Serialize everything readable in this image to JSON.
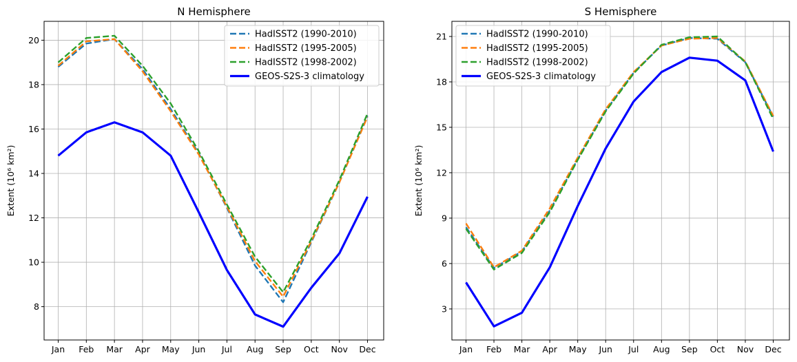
{
  "chart_data": [
    {
      "type": "line",
      "title": "N Hemisphere",
      "xlabel": "",
      "ylabel": "Extent (10⁶ km²)",
      "categories": [
        "Jan",
        "Feb",
        "Mar",
        "Apr",
        "May",
        "Jun",
        "Jul",
        "Aug",
        "Sep",
        "Oct",
        "Nov",
        "Dec"
      ],
      "ylim": [
        6.5,
        20.85
      ],
      "yticks": [
        8,
        10,
        12,
        14,
        16,
        18,
        20
      ],
      "grid": true,
      "legend_position": "top-right",
      "series": [
        {
          "name": "HadISST2 (1990-2010)",
          "color": "#1f77b4",
          "style": "dashed",
          "values": [
            18.8,
            19.85,
            20.05,
            18.7,
            16.9,
            14.9,
            12.45,
            9.85,
            8.2,
            10.9,
            13.6,
            16.6
          ]
        },
        {
          "name": "HadISST2 (1995-2005)",
          "color": "#ff7f0e",
          "style": "dashed",
          "values": [
            18.85,
            19.95,
            20.05,
            18.6,
            16.8,
            14.85,
            12.5,
            10.05,
            8.45,
            10.95,
            13.6,
            16.55
          ]
        },
        {
          "name": "HadISST2 (1998-2002)",
          "color": "#2ca02c",
          "style": "dashed",
          "values": [
            19.0,
            20.1,
            20.2,
            18.85,
            17.15,
            15.0,
            12.6,
            10.25,
            8.65,
            11.05,
            13.7,
            16.7
          ]
        },
        {
          "name": "GEOS-S2S-3 climatology",
          "color": "#0000ff",
          "style": "solid",
          "values": [
            14.8,
            15.85,
            16.3,
            15.85,
            14.8,
            12.25,
            9.65,
            7.65,
            7.1,
            8.85,
            10.4,
            12.95
          ]
        }
      ]
    },
    {
      "type": "line",
      "title": "S Hemisphere",
      "xlabel": "",
      "ylabel": "Extent (10⁶ km²)",
      "categories": [
        "Jan",
        "Feb",
        "Mar",
        "Apr",
        "May",
        "Jun",
        "Jul",
        "Aug",
        "Sep",
        "Oct",
        "Nov",
        "Dec"
      ],
      "ylim": [
        0.95,
        22.0
      ],
      "yticks": [
        3,
        6,
        9,
        12,
        15,
        18,
        21
      ],
      "grid": true,
      "legend_position": "top-left",
      "series": [
        {
          "name": "HadISST2 (1990-2010)",
          "color": "#1f77b4",
          "style": "dashed",
          "values": [
            8.4,
            5.7,
            6.8,
            9.5,
            12.9,
            16.1,
            18.6,
            20.4,
            20.9,
            20.85,
            19.3,
            15.7
          ]
        },
        {
          "name": "HadISST2 (1995-2005)",
          "color": "#ff7f0e",
          "style": "dashed",
          "values": [
            8.65,
            5.75,
            6.85,
            9.65,
            13.0,
            16.2,
            18.65,
            20.4,
            20.85,
            20.9,
            19.35,
            15.75
          ]
        },
        {
          "name": "HadISST2 (1998-2002)",
          "color": "#2ca02c",
          "style": "dashed",
          "values": [
            8.3,
            5.6,
            6.7,
            9.4,
            12.85,
            16.05,
            18.55,
            20.45,
            20.95,
            21.0,
            19.3,
            15.55
          ]
        },
        {
          "name": "GEOS-S2S-3 climatology",
          "color": "#0000ff",
          "style": "solid",
          "values": [
            4.75,
            1.85,
            2.75,
            5.75,
            9.8,
            13.6,
            16.7,
            18.65,
            19.6,
            19.4,
            18.1,
            13.4
          ]
        }
      ]
    }
  ]
}
